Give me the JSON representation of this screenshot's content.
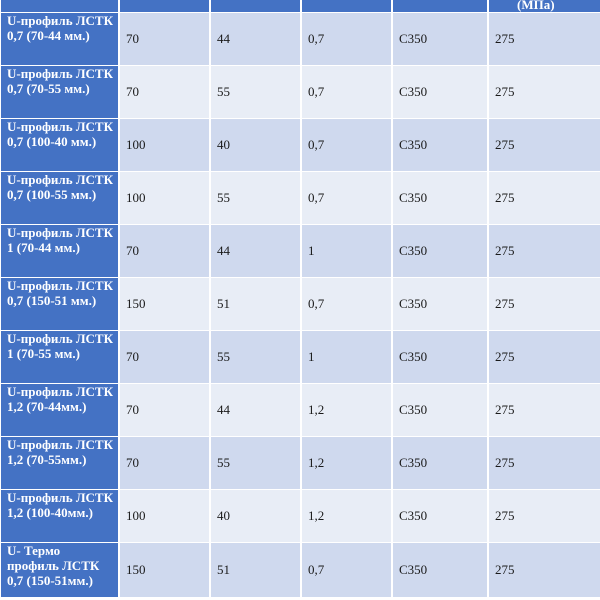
{
  "table": {
    "header_visible_text": "(МПа)",
    "rows": [
      {
        "name": "U-профиль ЛСТК 0,7 (70-44 мм.)",
        "c1": "70",
        "c2": "44",
        "c3": "0,7",
        "c4": "С350",
        "c5": "275"
      },
      {
        "name": "U-профиль ЛСТК 0,7 (70-55 мм.)",
        "c1": "70",
        "c2": "55",
        "c3": "0,7",
        "c4": "С350",
        "c5": "275"
      },
      {
        "name": "U-профиль ЛСТК 0,7 (100-40 мм.)",
        "c1": "100",
        "c2": "40",
        "c3": "0,7",
        "c4": "С350",
        "c5": "275"
      },
      {
        "name": "U-профиль ЛСТК 0,7 (100-55 мм.)",
        "c1": "100",
        "c2": "55",
        "c3": "0,7",
        "c4": "С350",
        "c5": "275"
      },
      {
        "name": "U-профиль ЛСТК 1 (70-44 мм.)",
        "c1": "70",
        "c2": "44",
        "c3": "1",
        "c4": "С350",
        "c5": "275"
      },
      {
        "name": "U-профиль ЛСТК 0,7 (150-51 мм.)",
        "c1": "150",
        "c2": "51",
        "c3": "0,7",
        "c4": "С350",
        "c5": "275"
      },
      {
        "name": "U-профиль ЛСТК 1 (70-55 мм.)",
        "c1": "70",
        "c2": "55",
        "c3": "1",
        "c4": "С350",
        "c5": "275"
      },
      {
        "name": "U-профиль ЛСТК 1,2 (70-44мм.)",
        "c1": "70",
        "c2": "44",
        "c3": "1,2",
        "c4": "С350",
        "c5": "275"
      },
      {
        "name": "U-профиль ЛСТК 1,2 (70-55мм.)",
        "c1": "70",
        "c2": "55",
        "c3": "1,2",
        "c4": "С350",
        "c5": "275"
      },
      {
        "name": "U-профиль ЛСТК 1,2 (100-40мм.)",
        "c1": "100",
        "c2": "40",
        "c3": "1,2",
        "c4": "С350",
        "c5": "275"
      },
      {
        "name": "U- Термо профиль ЛСТК 0,7 (150-51мм.)",
        "c1": "150",
        "c2": "51",
        "c3": "0,7",
        "c4": "С350",
        "c5": "275"
      }
    ]
  }
}
